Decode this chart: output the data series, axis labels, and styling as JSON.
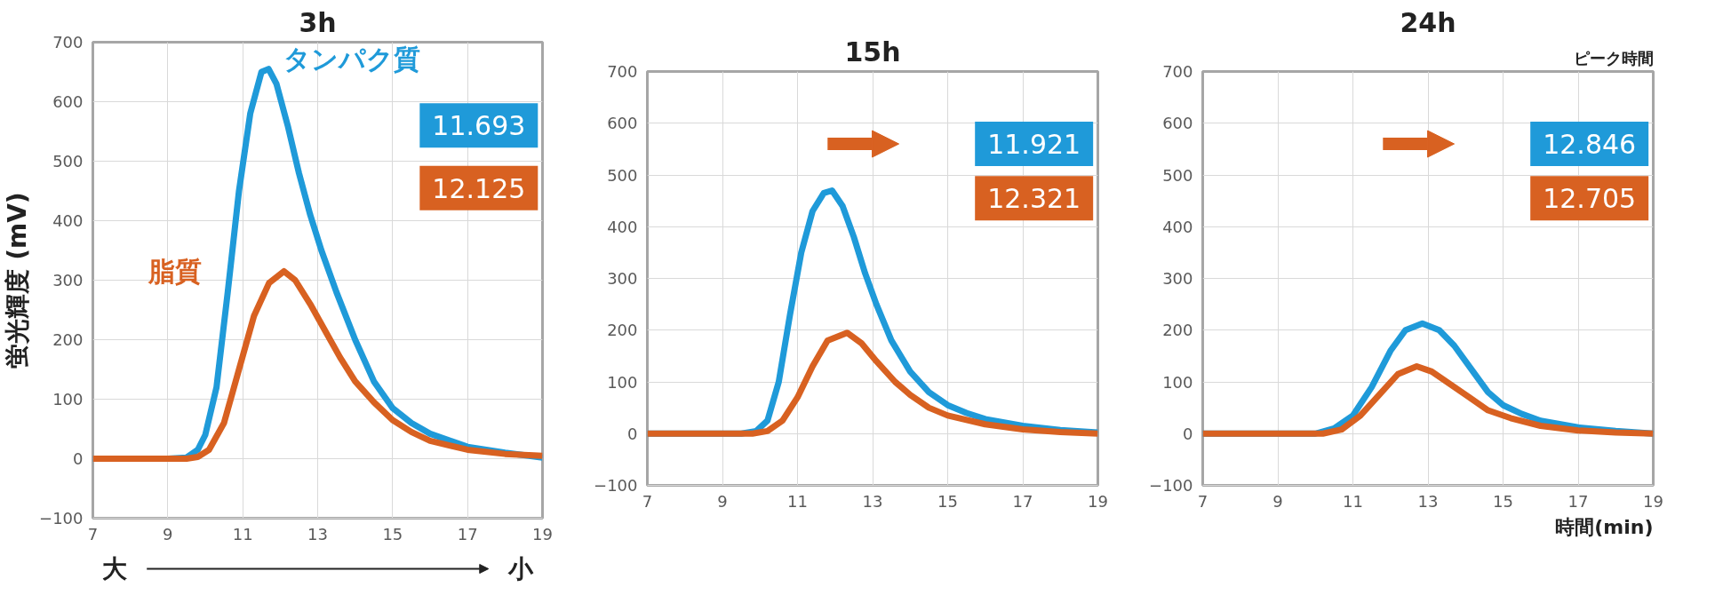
{
  "chart_data": [
    {
      "type": "line",
      "title": "3h",
      "ylabel": "蛍光輝度 (mV)",
      "xlim": [
        7,
        19
      ],
      "ylim": [
        -100,
        700
      ],
      "xticks": [
        7,
        9,
        11,
        13,
        15,
        17,
        19
      ],
      "yticks": [
        -100,
        0,
        100,
        200,
        300,
        400,
        500,
        600,
        700
      ],
      "grid": true,
      "annotations": [
        "11.693",
        "12.125",
        "大",
        "小"
      ],
      "series": [
        {
          "name": "タンパク質",
          "color": "#1f9ad9",
          "x": [
            7,
            9,
            9.5,
            9.8,
            10,
            10.3,
            10.6,
            10.9,
            11.2,
            11.5,
            11.69,
            11.9,
            12.2,
            12.5,
            12.8,
            13.1,
            13.5,
            14,
            14.5,
            15,
            15.5,
            16,
            17,
            18,
            19
          ],
          "values": [
            0,
            0,
            2,
            15,
            40,
            120,
            280,
            450,
            580,
            650,
            655,
            630,
            560,
            480,
            410,
            350,
            280,
            200,
            130,
            85,
            60,
            42,
            20,
            10,
            2
          ]
        },
        {
          "name": "脂質",
          "color": "#d86121",
          "x": [
            7,
            9.5,
            9.8,
            10.1,
            10.5,
            10.9,
            11.3,
            11.7,
            12.1,
            12.4,
            12.8,
            13.2,
            13.6,
            14,
            14.5,
            15,
            15.5,
            16,
            17,
            18,
            19
          ],
          "values": [
            0,
            0,
            3,
            15,
            60,
            150,
            240,
            295,
            315,
            300,
            260,
            215,
            170,
            130,
            95,
            65,
            45,
            30,
            15,
            8,
            5
          ]
        }
      ]
    },
    {
      "type": "line",
      "title": "15h",
      "xlim": [
        7,
        19
      ],
      "ylim": [
        -100,
        700
      ],
      "xticks": [
        7,
        9,
        11,
        13,
        15,
        17,
        19
      ],
      "yticks": [
        -100,
        0,
        100,
        200,
        300,
        400,
        500,
        600,
        700
      ],
      "grid": true,
      "annotations": [
        "11.921",
        "12.321"
      ],
      "series": [
        {
          "color": "#1f9ad9",
          "x": [
            7,
            9.5,
            9.9,
            10.2,
            10.5,
            10.8,
            11.1,
            11.4,
            11.7,
            11.92,
            12.2,
            12.5,
            12.8,
            13.1,
            13.5,
            14,
            14.5,
            15,
            15.5,
            16,
            17,
            18,
            19
          ],
          "values": [
            0,
            0,
            5,
            25,
            100,
            230,
            350,
            430,
            465,
            470,
            440,
            380,
            310,
            250,
            180,
            120,
            80,
            55,
            40,
            28,
            15,
            7,
            2
          ]
        },
        {
          "color": "#d86121",
          "x": [
            7,
            9.8,
            10.2,
            10.6,
            11,
            11.4,
            11.8,
            12.32,
            12.7,
            13.1,
            13.6,
            14,
            14.5,
            15,
            16,
            17,
            18,
            19
          ],
          "values": [
            0,
            0,
            5,
            25,
            70,
            130,
            180,
            195,
            175,
            140,
            100,
            75,
            50,
            35,
            18,
            8,
            3,
            0
          ]
        }
      ]
    },
    {
      "type": "line",
      "title": "24h",
      "xlabel": "時間(min)",
      "xlim": [
        7,
        19
      ],
      "ylim": [
        -100,
        700
      ],
      "xticks": [
        7,
        9,
        11,
        13,
        15,
        17,
        19
      ],
      "yticks": [
        -100,
        0,
        100,
        200,
        300,
        400,
        500,
        600,
        700
      ],
      "grid": true,
      "annotations": [
        "12.846",
        "12.705",
        "ピーク時間"
      ],
      "series": [
        {
          "color": "#1f9ad9",
          "x": [
            7,
            10,
            10.5,
            11,
            11.5,
            12,
            12.4,
            12.85,
            13.3,
            13.7,
            14.2,
            14.6,
            15,
            15.5,
            16,
            17,
            18,
            19
          ],
          "values": [
            0,
            0,
            10,
            35,
            90,
            160,
            200,
            213,
            200,
            170,
            120,
            80,
            55,
            38,
            25,
            12,
            5,
            0
          ]
        },
        {
          "color": "#d86121",
          "x": [
            7,
            10.2,
            10.7,
            11.2,
            11.7,
            12.2,
            12.7,
            13.1,
            13.6,
            14.1,
            14.6,
            15.2,
            16,
            17,
            18,
            19
          ],
          "values": [
            0,
            0,
            8,
            35,
            75,
            115,
            130,
            120,
            95,
            70,
            45,
            30,
            15,
            6,
            2,
            0
          ]
        }
      ]
    }
  ]
}
